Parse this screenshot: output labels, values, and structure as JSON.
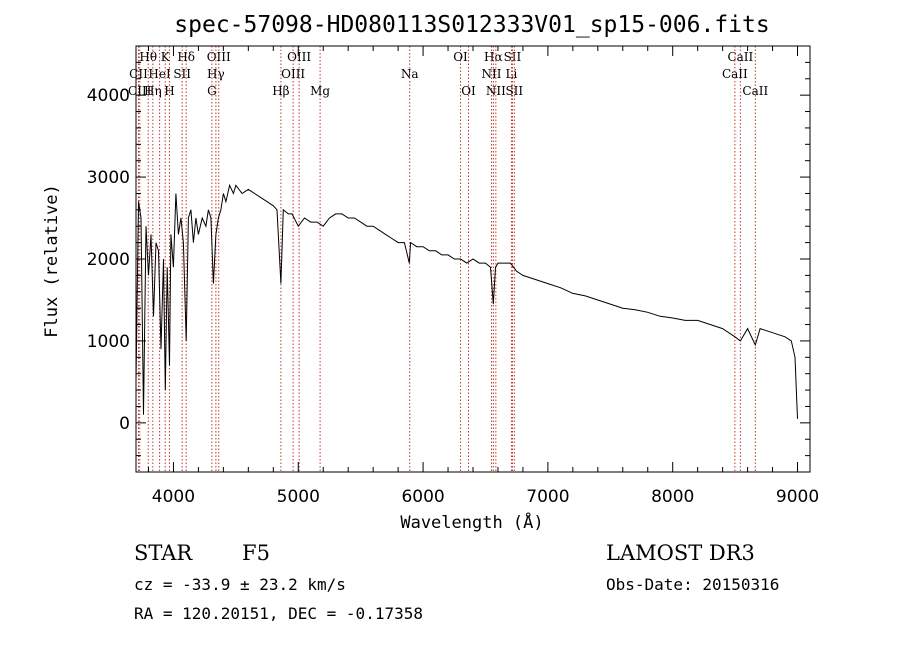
{
  "chart_data": {
    "type": "line",
    "title": "spec-57098-HD080113S012333V01_sp15-006.fits",
    "xlabel": "Wavelength (Å)",
    "ylabel": "Flux (relative)",
    "xlim": [
      3700,
      9100
    ],
    "ylim": [
      -600,
      4600
    ],
    "xticks": [
      4000,
      5000,
      6000,
      7000,
      8000,
      9000
    ],
    "yticks": [
      0,
      1000,
      2000,
      3000,
      4000
    ],
    "series": [
      {
        "name": "Flux",
        "x": [
          3700,
          3720,
          3740,
          3760,
          3780,
          3800,
          3820,
          3840,
          3860,
          3880,
          3900,
          3920,
          3935,
          3950,
          3968,
          3980,
          4000,
          4020,
          4040,
          4060,
          4080,
          4102,
          4120,
          4140,
          4160,
          4180,
          4200,
          4230,
          4260,
          4280,
          4300,
          4320,
          4340,
          4360,
          4380,
          4400,
          4420,
          4450,
          4480,
          4500,
          4550,
          4600,
          4650,
          4700,
          4750,
          4800,
          4830,
          4861,
          4880,
          4920,
          4950,
          5000,
          5050,
          5100,
          5150,
          5200,
          5250,
          5300,
          5350,
          5400,
          5450,
          5500,
          5550,
          5600,
          5650,
          5700,
          5750,
          5800,
          5850,
          5890,
          5900,
          5950,
          6000,
          6050,
          6100,
          6150,
          6200,
          6250,
          6300,
          6350,
          6400,
          6450,
          6500,
          6540,
          6563,
          6580,
          6600,
          6650,
          6700,
          6750,
          6800,
          6900,
          7000,
          7100,
          7200,
          7300,
          7400,
          7500,
          7600,
          7700,
          7800,
          7900,
          8000,
          8100,
          8200,
          8300,
          8400,
          8498,
          8542,
          8600,
          8662,
          8700,
          8800,
          8900,
          8950,
          8980,
          9000
        ],
        "values": [
          500,
          2700,
          2500,
          100,
          2400,
          1800,
          2300,
          1300,
          2200,
          2100,
          900,
          2000,
          400,
          1900,
          700,
          2300,
          1900,
          2800,
          2300,
          2500,
          2200,
          1000,
          2500,
          2600,
          2200,
          2500,
          2300,
          2500,
          2400,
          2600,
          2500,
          1700,
          2300,
          2500,
          2600,
          2800,
          2700,
          2900,
          2800,
          2900,
          2800,
          2850,
          2800,
          2750,
          2700,
          2650,
          2600,
          1700,
          2600,
          2550,
          2550,
          2400,
          2500,
          2450,
          2450,
          2400,
          2500,
          2550,
          2550,
          2500,
          2500,
          2450,
          2400,
          2400,
          2350,
          2300,
          2250,
          2200,
          2200,
          1950,
          2200,
          2150,
          2150,
          2100,
          2100,
          2050,
          2050,
          2000,
          2000,
          1950,
          2000,
          1950,
          1950,
          1900,
          1450,
          1900,
          1950,
          1950,
          1950,
          1850,
          1800,
          1750,
          1700,
          1650,
          1580,
          1550,
          1500,
          1450,
          1400,
          1380,
          1350,
          1300,
          1280,
          1250,
          1250,
          1200,
          1150,
          1050,
          1000,
          1150,
          950,
          1150,
          1100,
          1050,
          1000,
          800,
          50
        ]
      }
    ],
    "spectral_lines": [
      {
        "name": "Hθ",
        "wavelength": 3798,
        "row": 1
      },
      {
        "name": "CII",
        "wavelength": 3720,
        "row": 2
      },
      {
        "name": "CIII",
        "wavelength": 3730,
        "row": 3
      },
      {
        "name": "K",
        "wavelength": 3934,
        "row": 1
      },
      {
        "name": "HeI",
        "wavelength": 3889,
        "row": 2
      },
      {
        "name": "Hη",
        "wavelength": 3835,
        "row": 3
      },
      {
        "name": "Hδ",
        "wavelength": 4102,
        "row": 1
      },
      {
        "name": "SII",
        "wavelength": 4070,
        "row": 2
      },
      {
        "name": "H",
        "wavelength": 3968,
        "row": 3
      },
      {
        "name": "OIII",
        "wavelength": 4363,
        "row": 1
      },
      {
        "name": "Hγ",
        "wavelength": 4340,
        "row": 2
      },
      {
        "name": "G",
        "wavelength": 4308,
        "row": 3
      },
      {
        "name": "OIII",
        "wavelength": 5007,
        "row": 1
      },
      {
        "name": "OIII",
        "wavelength": 4959,
        "row": 2
      },
      {
        "name": "Hβ",
        "wavelength": 4861,
        "row": 3
      },
      {
        "name": "Mg",
        "wavelength": 5175,
        "row": 3
      },
      {
        "name": "Na",
        "wavelength": 5893,
        "row": 2
      },
      {
        "name": "OI",
        "wavelength": 6300,
        "row": 1
      },
      {
        "name": "OI",
        "wavelength": 6364,
        "row": 3
      },
      {
        "name": "Hα",
        "wavelength": 6563,
        "row": 1
      },
      {
        "name": "NII",
        "wavelength": 6548,
        "row": 2
      },
      {
        "name": "NII",
        "wavelength": 6583,
        "row": 3
      },
      {
        "name": "SII",
        "wavelength": 6716,
        "row": 1
      },
      {
        "name": "Li",
        "wavelength": 6708,
        "row": 2
      },
      {
        "name": "SII",
        "wavelength": 6731,
        "row": 3
      },
      {
        "name": "CaII",
        "wavelength": 8542,
        "row": 1
      },
      {
        "name": "CaII",
        "wavelength": 8498,
        "row": 2
      },
      {
        "name": "CaII",
        "wavelength": 8662,
        "row": 3
      }
    ]
  },
  "footer": {
    "class_label": "STAR",
    "subclass": "F5",
    "survey": "LAMOST DR3",
    "cz": "cz = -33.9 ± 23.2 km/s",
    "obs_date": "Obs-Date: 20150316",
    "coords": "RA = 120.20151, DEC =  -0.17358"
  }
}
